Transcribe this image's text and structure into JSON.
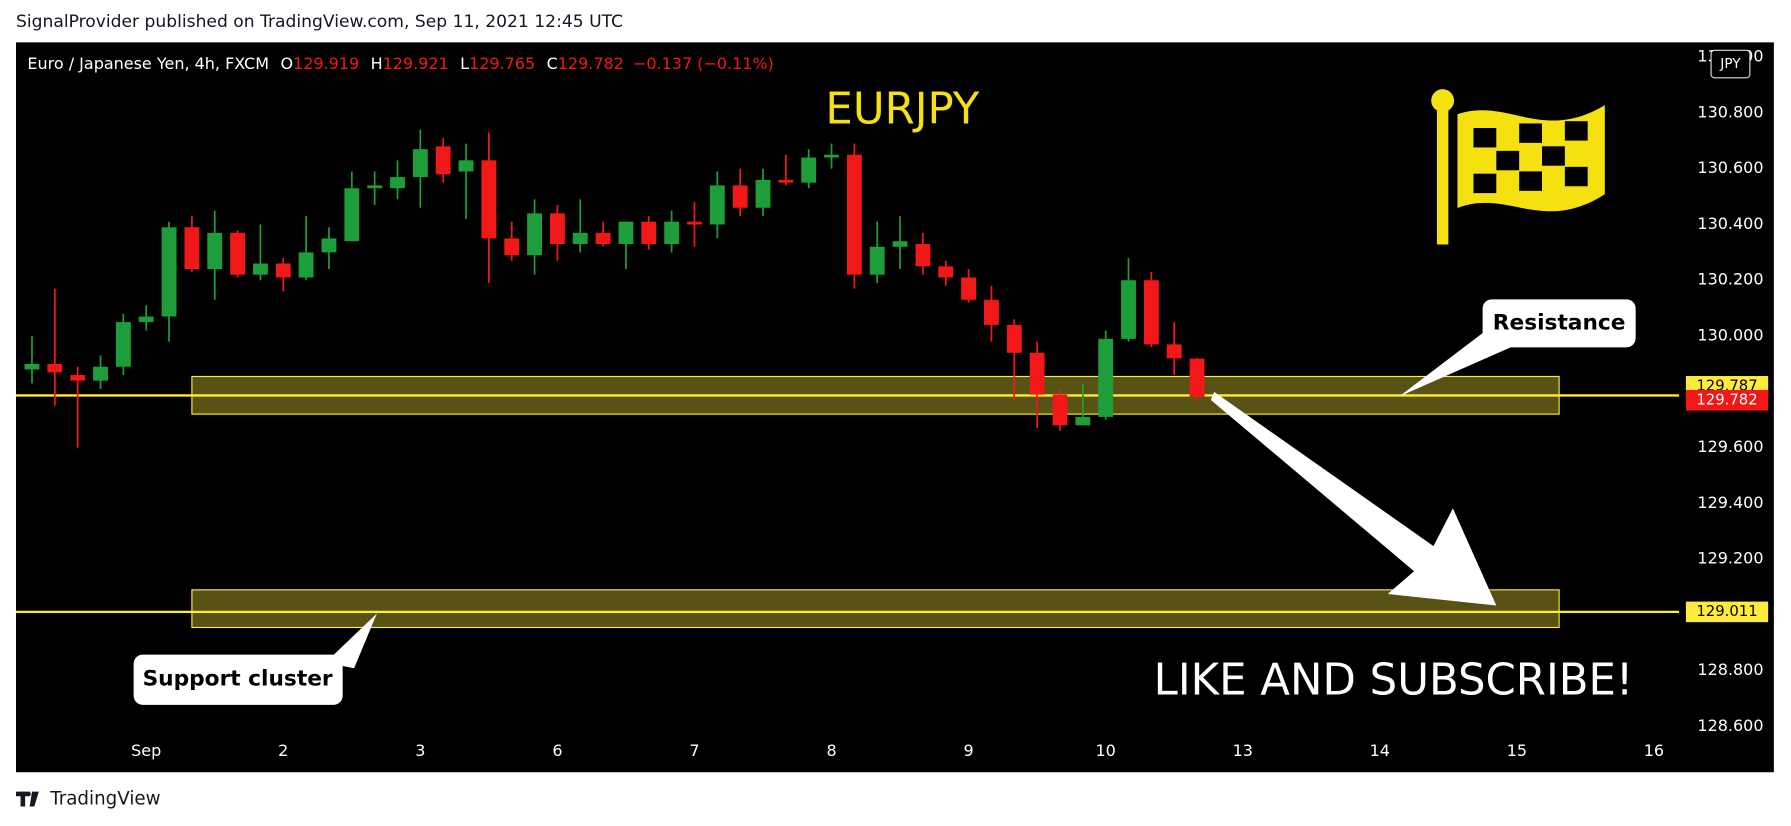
{
  "header": "SignalProvider published on TradingView.com, Sep 11, 2021 12:45 UTC",
  "footer": "TradingView",
  "chart_data": {
    "type": "candlestick",
    "title": "EURJPY",
    "symbol": "Euro / Japanese Yen, 4h, FXCM",
    "legend_values": [
      {
        "key": "O",
        "value": "129.919"
      },
      {
        "key": "H",
        "value": "129.921"
      },
      {
        "key": "L",
        "value": "129.765"
      },
      {
        "key": "C",
        "value": "129.782"
      }
    ],
    "change": "−0.137 (−0.11%)",
    "currency": "JPY",
    "x": [
      0,
      1,
      2,
      3,
      4,
      5,
      6,
      7,
      8,
      9,
      10,
      11,
      12,
      13,
      14,
      15,
      16,
      17,
      18,
      19,
      20,
      21,
      22,
      23,
      24,
      25,
      26,
      27,
      28,
      29,
      30,
      31,
      32,
      33,
      34,
      35,
      36,
      37,
      38,
      39,
      40,
      41,
      42,
      43,
      44,
      45,
      46,
      47,
      48,
      49,
      50,
      51
    ],
    "open": [
      129.88,
      129.9,
      129.86,
      129.84,
      129.89,
      130.05,
      130.07,
      130.39,
      130.24,
      130.37,
      130.22,
      130.26,
      130.21,
      130.3,
      130.34,
      130.53,
      130.53,
      130.57,
      130.68,
      130.59,
      130.63,
      130.35,
      130.29,
      130.44,
      130.33,
      130.37,
      130.33,
      130.41,
      130.33,
      130.41,
      130.4,
      130.54,
      130.46,
      130.56,
      130.55,
      130.64,
      130.65,
      130.22,
      130.32,
      130.33,
      130.25,
      130.21,
      130.13,
      130.04,
      129.94,
      129.79,
      129.68,
      129.71,
      129.99,
      130.2,
      129.97,
      129.919
    ],
    "high": [
      130.0,
      130.17,
      129.89,
      129.93,
      130.08,
      130.11,
      130.41,
      130.43,
      130.45,
      130.38,
      130.4,
      130.28,
      130.43,
      130.39,
      130.59,
      130.59,
      130.63,
      130.74,
      130.71,
      130.69,
      130.73,
      130.41,
      130.49,
      130.47,
      130.49,
      130.41,
      130.41,
      130.43,
      130.45,
      130.48,
      130.59,
      130.6,
      130.6,
      130.65,
      130.67,
      130.69,
      130.69,
      130.41,
      130.43,
      130.37,
      130.27,
      130.24,
      130.18,
      130.06,
      129.98,
      129.81,
      129.83,
      130.02,
      130.28,
      130.23,
      130.05,
      129.921
    ],
    "low": [
      129.83,
      129.75,
      129.6,
      129.81,
      129.86,
      130.02,
      129.98,
      130.23,
      130.13,
      130.21,
      130.2,
      130.16,
      130.2,
      130.24,
      130.34,
      130.47,
      130.49,
      130.46,
      130.55,
      130.42,
      130.19,
      130.27,
      130.22,
      130.27,
      130.3,
      130.32,
      130.24,
      130.31,
      130.3,
      130.32,
      130.35,
      130.43,
      130.43,
      130.54,
      130.53,
      130.6,
      130.17,
      130.19,
      130.24,
      130.22,
      130.18,
      130.12,
      129.98,
      129.77,
      129.67,
      129.66,
      129.68,
      129.7,
      129.98,
      129.96,
      129.86,
      129.765
    ],
    "close": [
      129.9,
      129.87,
      129.84,
      129.89,
      130.05,
      130.07,
      130.39,
      130.24,
      130.37,
      130.22,
      130.26,
      130.21,
      130.3,
      130.35,
      130.53,
      130.54,
      130.57,
      130.67,
      130.58,
      130.63,
      130.35,
      130.29,
      130.44,
      130.33,
      130.37,
      130.33,
      130.41,
      130.33,
      130.41,
      130.4,
      130.54,
      130.46,
      130.56,
      130.55,
      130.64,
      130.65,
      130.22,
      130.32,
      130.34,
      130.25,
      130.21,
      130.13,
      130.04,
      129.94,
      129.79,
      129.68,
      129.71,
      129.99,
      130.2,
      129.97,
      129.92,
      129.782
    ],
    "up_color": "#1e9e3a",
    "down_color": "#f21818",
    "xlim": [
      -0.7,
      72.1
    ],
    "xticks": [
      {
        "value": 5,
        "label": "Sep"
      },
      {
        "value": 11,
        "label": "2"
      },
      {
        "value": 17,
        "label": "3"
      },
      {
        "value": 23,
        "label": "6"
      },
      {
        "value": 29,
        "label": "7"
      },
      {
        "value": 35,
        "label": "8"
      },
      {
        "value": 41,
        "label": "9"
      },
      {
        "value": 47,
        "label": "10"
      },
      {
        "value": 53,
        "label": "13"
      },
      {
        "value": 59,
        "label": "14"
      },
      {
        "value": 65,
        "label": "15"
      },
      {
        "value": 71,
        "label": "16"
      }
    ],
    "ylim": [
      128.563,
      131.053
    ],
    "yticks": [
      {
        "value": 128.6,
        "label": "128.600"
      },
      {
        "value": 128.8,
        "label": "128.800"
      },
      {
        "value": 129.0,
        "label": "129.000"
      },
      {
        "value": 129.2,
        "label": "129.200"
      },
      {
        "value": 129.4,
        "label": "129.400"
      },
      {
        "value": 129.6,
        "label": "129.600"
      },
      {
        "value": 129.8,
        "label": "129.800"
      },
      {
        "value": 130.0,
        "label": "130.000"
      },
      {
        "value": 130.2,
        "label": "130.200"
      },
      {
        "value": 130.4,
        "label": "130.400"
      },
      {
        "value": 130.6,
        "label": "130.600"
      },
      {
        "value": 130.8,
        "label": "130.800"
      },
      {
        "value": 131.0,
        "label": "131.000"
      }
    ],
    "hlines": [
      {
        "value": 129.787,
        "color": "#ffeb3b"
      },
      {
        "value": 129.011,
        "color": "#ffeb3b"
      }
    ],
    "price_labels": [
      {
        "value": 129.787,
        "color": "#ffeb3b"
      },
      {
        "value": 129.782,
        "color": "#f21818"
      },
      {
        "value": 129.011,
        "color": "#ffeb3b"
      }
    ],
    "zones": [
      {
        "low": 129.72,
        "high": 129.855,
        "start": 7,
        "end": 66.85
      },
      {
        "low": 128.955,
        "high": 129.09,
        "start": 7,
        "end": 66.85
      }
    ],
    "annotations": {
      "resistance": "Resistance",
      "support": "Support cluster",
      "cta": "LIKE AND SUBSCRIBE!"
    }
  }
}
